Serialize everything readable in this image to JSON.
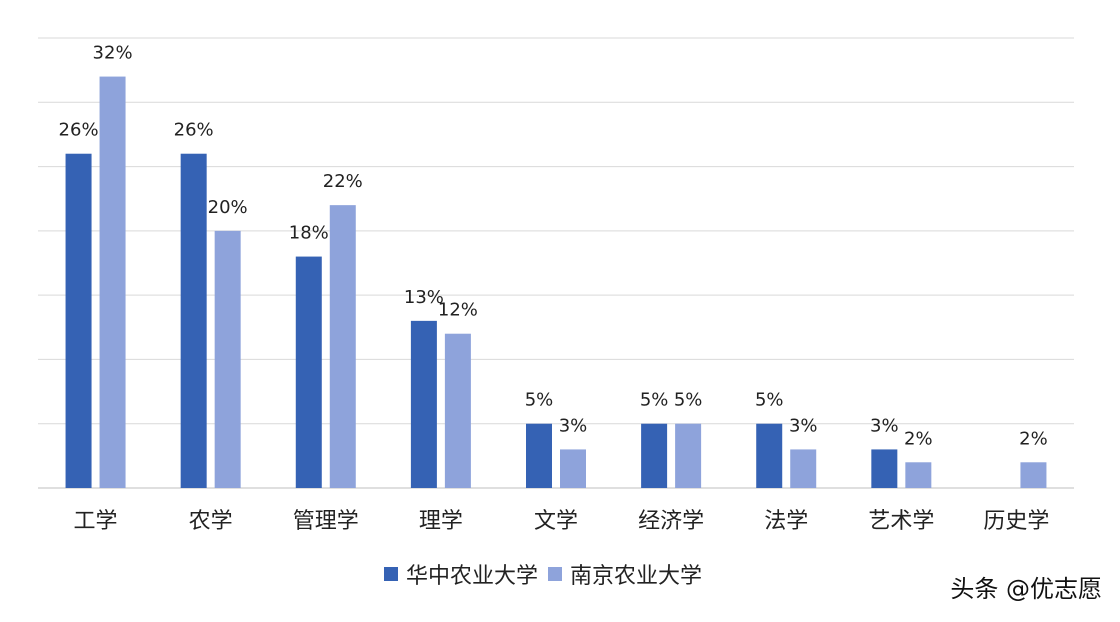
{
  "chart_data": {
    "type": "bar",
    "categories": [
      "工学",
      "农学",
      "管理学",
      "理学",
      "文学",
      "经济学",
      "法学",
      "艺术学",
      "历史学"
    ],
    "series": [
      {
        "name": "华中农业大学",
        "color": "#3562b4",
        "values": [
          26,
          26,
          18,
          13,
          5,
          5,
          5,
          3,
          null
        ],
        "labels": [
          "26%",
          "26%",
          "18%",
          "13%",
          "5%",
          "5%",
          "5%",
          "3%",
          ""
        ]
      },
      {
        "name": "南京农业大学",
        "color": "#8ea3db",
        "values": [
          32,
          20,
          22,
          12,
          3,
          5,
          3,
          2,
          2
        ],
        "labels": [
          "32%",
          "20%",
          "22%",
          "12%",
          "3%",
          "5%",
          "3%",
          "2%",
          "2%"
        ]
      }
    ],
    "ylim": [
      0,
      35
    ],
    "grid": true,
    "legend": "bottom"
  },
  "footer": {
    "credit": "头条 @优志愿"
  }
}
